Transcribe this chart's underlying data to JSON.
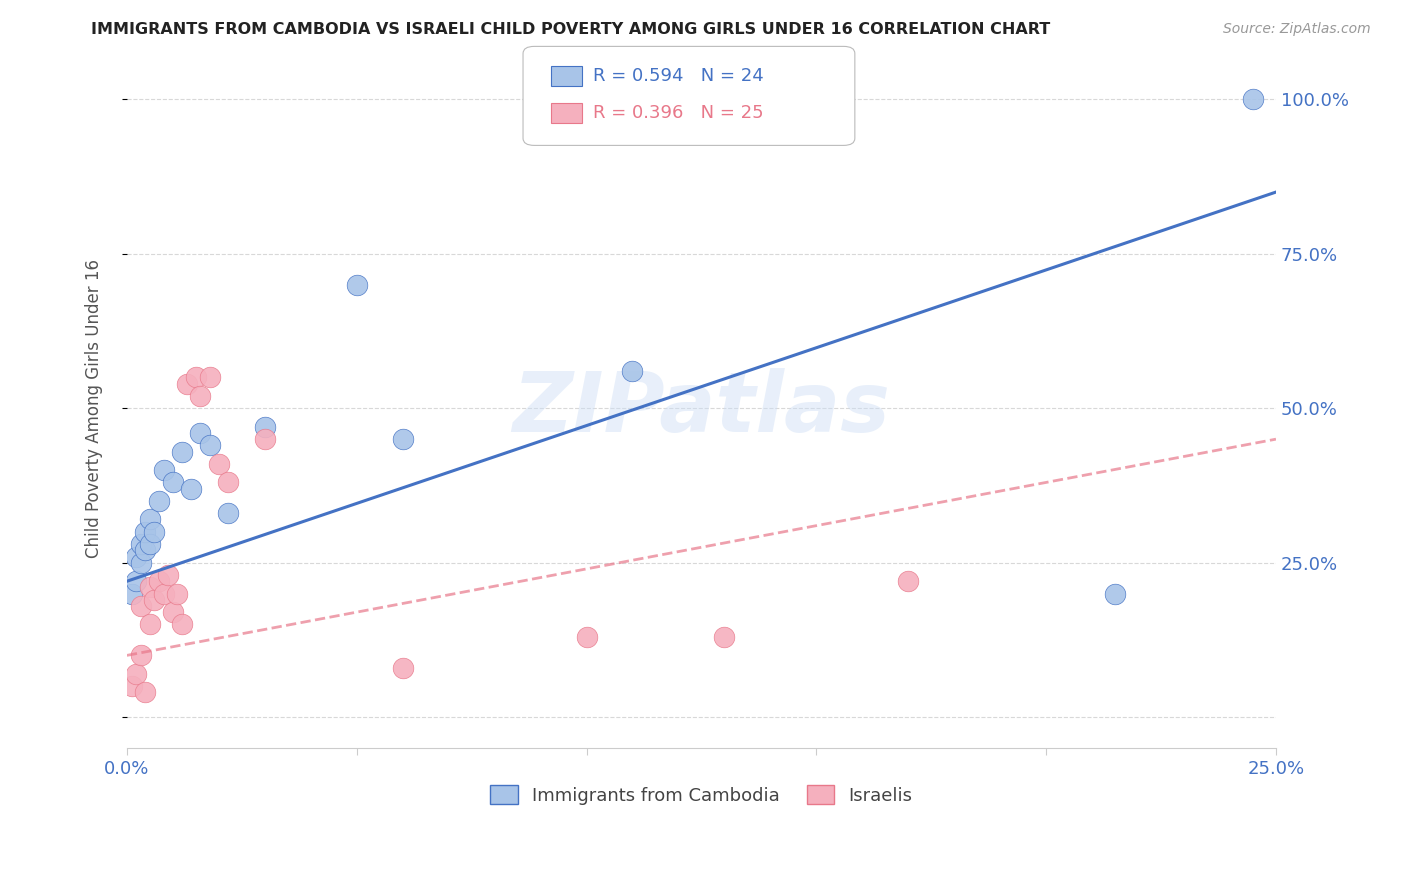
{
  "title": "IMMIGRANTS FROM CAMBODIA VS ISRAELI CHILD POVERTY AMONG GIRLS UNDER 16 CORRELATION CHART",
  "source": "Source: ZipAtlas.com",
  "ylabel_label": "Child Poverty Among Girls Under 16",
  "xlim": [
    0.0,
    0.25
  ],
  "ylim": [
    -0.05,
    1.05
  ],
  "xticks": [
    0.0,
    0.05,
    0.1,
    0.15,
    0.2,
    0.25
  ],
  "yticks": [
    0.0,
    0.25,
    0.5,
    0.75,
    1.0
  ],
  "xtick_labels": [
    "0.0%",
    "",
    "",
    "",
    "",
    "25.0%"
  ],
  "ytick_labels": [
    "",
    "25.0%",
    "50.0%",
    "75.0%",
    "100.0%"
  ],
  "cambodia_x": [
    0.001,
    0.002,
    0.002,
    0.003,
    0.003,
    0.004,
    0.004,
    0.005,
    0.005,
    0.006,
    0.007,
    0.008,
    0.01,
    0.012,
    0.014,
    0.016,
    0.018,
    0.022,
    0.03,
    0.05,
    0.06,
    0.11,
    0.215,
    0.245
  ],
  "cambodia_y": [
    0.2,
    0.22,
    0.26,
    0.25,
    0.28,
    0.27,
    0.3,
    0.32,
    0.28,
    0.3,
    0.35,
    0.4,
    0.38,
    0.43,
    0.37,
    0.46,
    0.44,
    0.33,
    0.47,
    0.7,
    0.45,
    0.56,
    0.2,
    1.0
  ],
  "israeli_x": [
    0.001,
    0.002,
    0.003,
    0.003,
    0.004,
    0.005,
    0.005,
    0.006,
    0.007,
    0.008,
    0.009,
    0.01,
    0.011,
    0.012,
    0.013,
    0.015,
    0.016,
    0.018,
    0.02,
    0.022,
    0.03,
    0.06,
    0.1,
    0.13,
    0.17
  ],
  "israeli_y": [
    0.05,
    0.07,
    0.1,
    0.18,
    0.04,
    0.15,
    0.21,
    0.19,
    0.22,
    0.2,
    0.23,
    0.17,
    0.2,
    0.15,
    0.54,
    0.55,
    0.52,
    0.55,
    0.41,
    0.38,
    0.45,
    0.08,
    0.13,
    0.13,
    0.22
  ],
  "cambodia_color": "#a8c4e8",
  "israeli_color": "#f5b0be",
  "cambodia_line_color": "#4472c4",
  "israeli_line_color": "#e8788a",
  "r_cambodia": 0.594,
  "n_cambodia": 24,
  "r_israeli": 0.396,
  "n_israeli": 25,
  "legend_label_cambodia": "Immigrants from Cambodia",
  "legend_label_israeli": "Israelis",
  "watermark": "ZIPatlas",
  "background_color": "#ffffff",
  "grid_color": "#d8d8d8",
  "cambodia_line_x": [
    0.0,
    0.25
  ],
  "cambodia_line_y": [
    0.22,
    0.85
  ],
  "israeli_line_x": [
    0.0,
    0.25
  ],
  "israeli_line_y": [
    0.1,
    0.45
  ]
}
